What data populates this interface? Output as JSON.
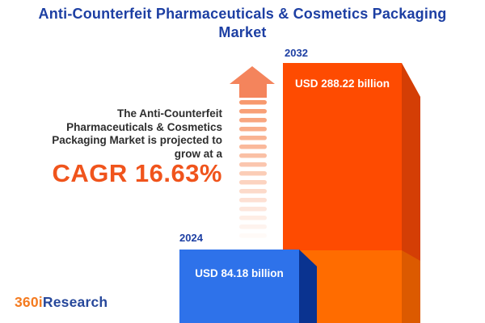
{
  "title": "Anti-Counterfeit Pharmaceuticals & Cosmetics Packaging Market",
  "description": {
    "lines": [
      "The Anti-Counterfeit",
      "Pharmaceuticals & Cosmetics",
      "Packaging Market is projected to",
      "grow at a"
    ]
  },
  "cagr_label": "CAGR 16.63%",
  "logo": {
    "prefix": "360i",
    "suffix": "Research"
  },
  "chart_data": {
    "type": "bar",
    "title": "Anti-Counterfeit Pharmaceuticals & Cosmetics Packaging Market",
    "categories": [
      "2024",
      "2032"
    ],
    "values": [
      84.18,
      288.22
    ],
    "unit": "USD billion",
    "value_labels": [
      "USD 84.18 billion",
      "USD 288.22 billion"
    ],
    "cagr_percent": 16.63,
    "ylim": [
      0,
      300
    ],
    "grid": false,
    "legend": false,
    "colors": {
      "bar_2024_front": "#2E72EA",
      "bar_2024_side": "#0A3390",
      "bar_2032_front_upper": "#FE4B01",
      "bar_2032_front_lower": "#FF6C00",
      "bar_2032_side_upper": "#D43E05",
      "bar_2032_side_lower": "#DC5A00",
      "title_blue": "#1D3FA3",
      "cagr_orange": "#F0541C",
      "arrow_orange": "#F4845C",
      "logo_orange": "#F47B20",
      "logo_blue": "#27489B",
      "text_dark": "#2E2E2E"
    }
  }
}
